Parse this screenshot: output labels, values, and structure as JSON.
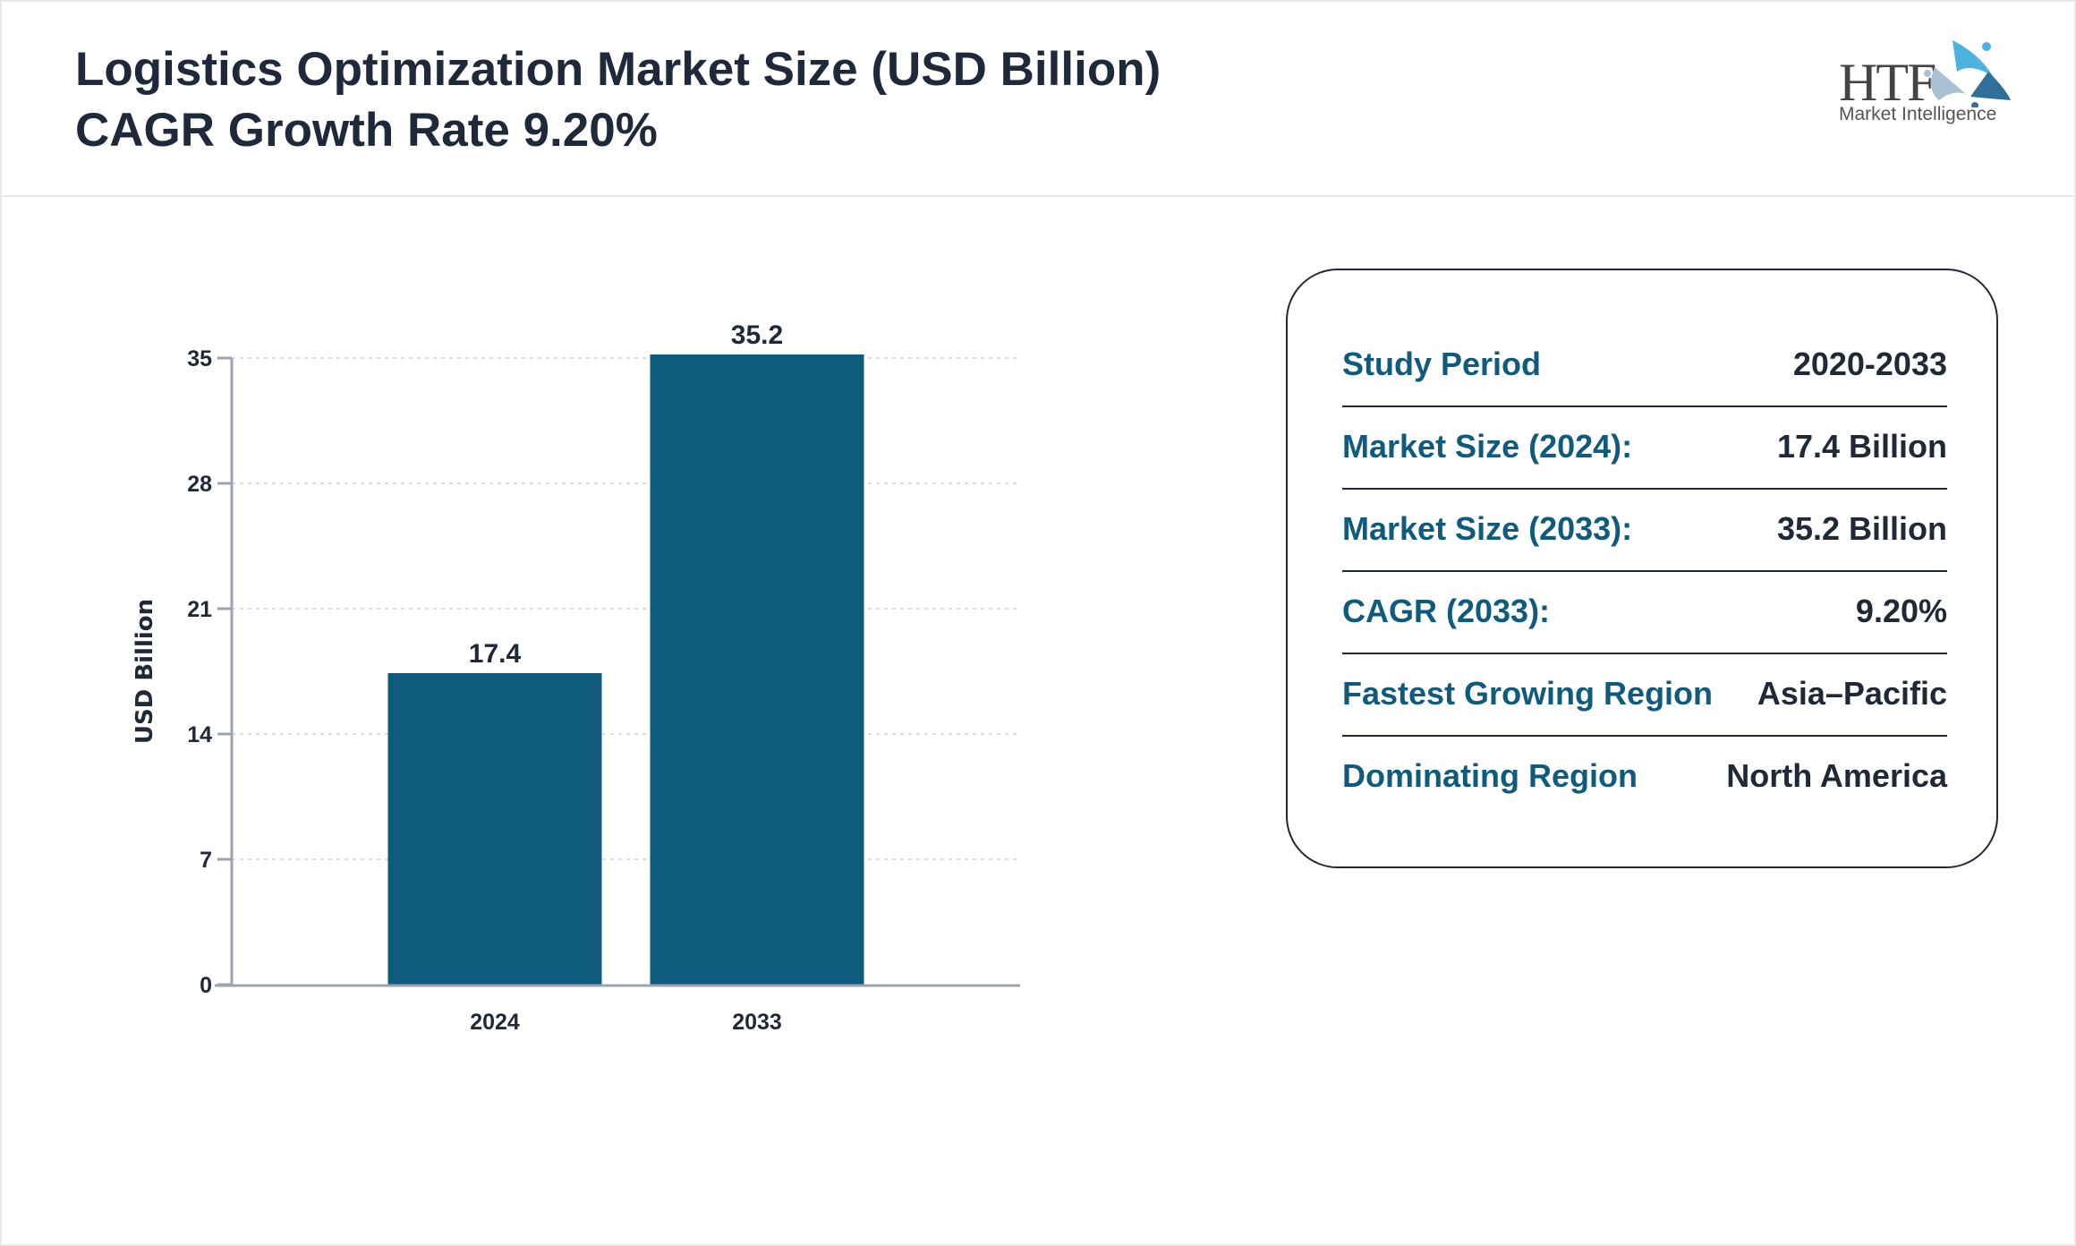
{
  "header": {
    "title_line1": "Logistics Optimization Market Size (USD Billion)",
    "title_line2": "CAGR Growth Rate 9.20%",
    "logo_text": "HTF",
    "logo_subtext": "Market Intelligence"
  },
  "chart_data": {
    "type": "bar",
    "categories": [
      "2024",
      "2033"
    ],
    "values": [
      17.4,
      35.2
    ],
    "data_labels": [
      "17.4",
      "35.2"
    ],
    "xlabel": "",
    "ylabel": "USD Billion",
    "ylim": [
      0,
      35
    ],
    "yticks": [
      "0",
      "7",
      "14",
      "21",
      "28",
      "35"
    ],
    "grid": true,
    "bar_color": "#0e5b7e"
  },
  "summary": {
    "rows": [
      {
        "label": "Study Period",
        "value": "2020-2033"
      },
      {
        "label": "Market Size (2024):",
        "value": "17.4 Billion"
      },
      {
        "label": "Market Size (2033):",
        "value": "35.2 Billion"
      },
      {
        "label": "CAGR (2033):",
        "value": "9.20%"
      },
      {
        "label": "Fastest Growing Region",
        "value": "Asia–Pacific"
      },
      {
        "label": "Dominating Region",
        "value": "North America"
      }
    ]
  }
}
